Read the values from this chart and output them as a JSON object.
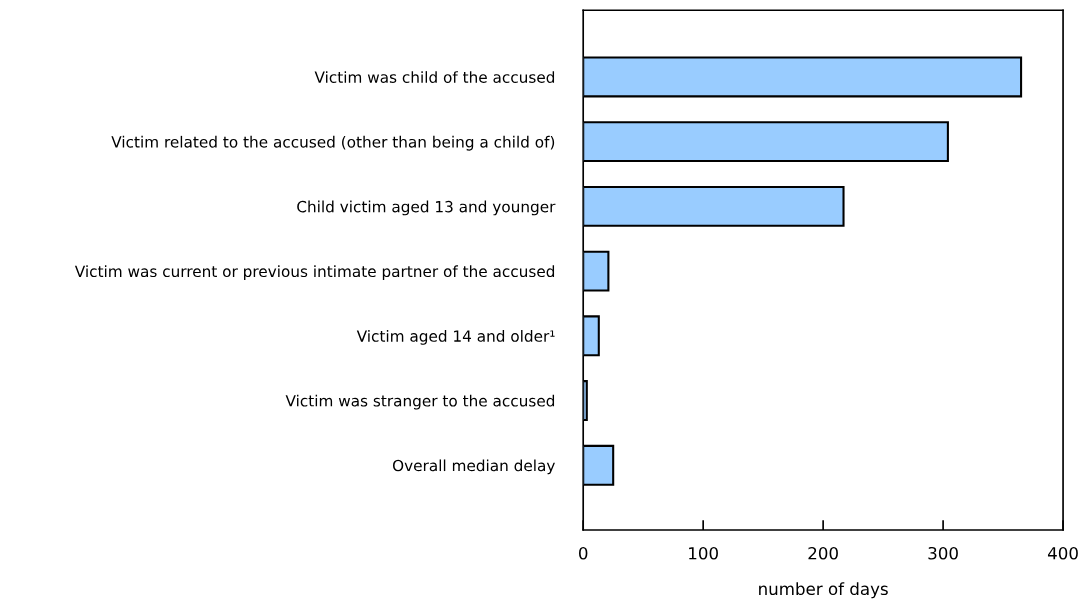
{
  "chart_data": {
    "type": "bar",
    "orientation": "horizontal",
    "xlabel": "number of days",
    "categories": [
      "Victim was child of the accused",
      "Victim related to the accused (other than being a child of)",
      "Child victim aged 13 and younger",
      "Victim was current or previous intimate partner of the accused",
      "Victim aged 14 and older¹",
      "Victim was stranger to the accused",
      "Overall median delay"
    ],
    "values": [
      365,
      304,
      217,
      21,
      13,
      3,
      25
    ],
    "color": "#99ccff",
    "xlim": [
      0,
      400
    ],
    "xticks": [
      0,
      100,
      200,
      300,
      400
    ],
    "grid": false,
    "legend": false
  }
}
